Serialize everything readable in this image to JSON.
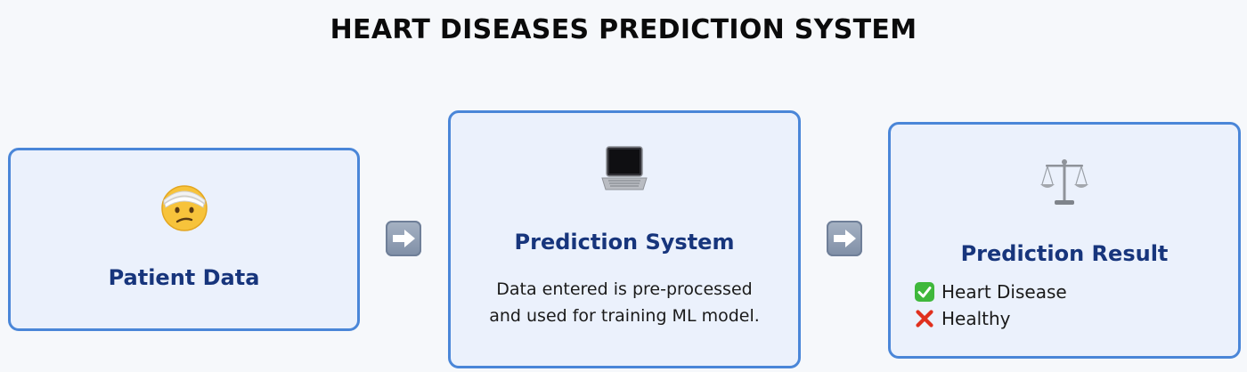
{
  "title": "HEART DISEASES PREDICTION SYSTEM",
  "nodes": {
    "patient": {
      "icon": "head-bandage-face-icon",
      "heading": "Patient Data"
    },
    "system": {
      "icon": "laptop-icon",
      "heading": "Prediction System",
      "description_line_1": "Data entered is pre-processed",
      "description_line_2": "and used for training ML model."
    },
    "result": {
      "icon": "balance-scale-icon",
      "heading": "Prediction Result",
      "outcomes": [
        {
          "icon": "check-mark-icon",
          "label": "Heart Disease"
        },
        {
          "icon": "cross-mark-icon",
          "label": "Healthy"
        }
      ]
    }
  },
  "edges": [
    {
      "from": "patient",
      "to": "system",
      "icon": "right-arrow-icon"
    },
    {
      "from": "system",
      "to": "result",
      "icon": "right-arrow-icon"
    }
  ],
  "colors": {
    "box_border": "#4a86d8",
    "box_fill": "#ebf1fc",
    "heading_text": "#17357c",
    "check": "#3fb83c",
    "cross": "#e0301e"
  }
}
